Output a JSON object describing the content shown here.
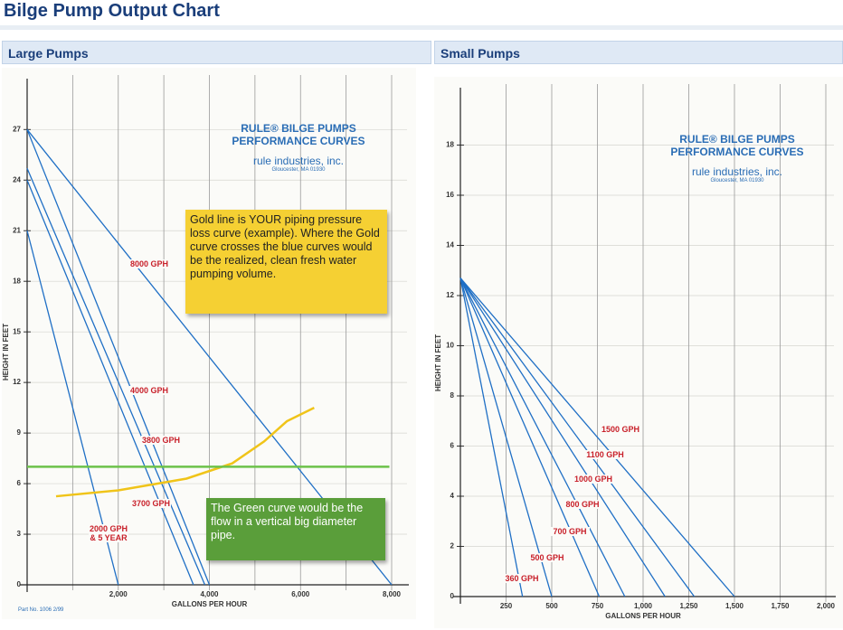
{
  "header": {
    "title": "Bilge Pump Output Chart"
  },
  "chart_data": [
    {
      "type": "line",
      "title": "Large Pumps",
      "x_label": "GALLONS PER HOUR",
      "y_label": "HEIGHT IN FEET",
      "logo": [
        "RULE® BILGE PUMPS",
        "PERFORMANCE CURVES",
        "rule industries, inc.",
        "Gloucester, MA 01930"
      ],
      "footnote": "Part No. 1006  2/99",
      "xlim": [
        0,
        8000
      ],
      "ylim": [
        0,
        29
      ],
      "xticks": [
        {
          "value": 2000,
          "label": "2,000"
        },
        {
          "value": 4000,
          "label": "4,000"
        },
        {
          "value": 6000,
          "label": "6,000"
        },
        {
          "value": 8000,
          "label": "8,000"
        }
      ],
      "x_minor_ticks": [
        1000,
        3000,
        5000,
        7000
      ],
      "yticks": [
        0,
        3,
        6,
        9,
        12,
        15,
        18,
        21,
        24,
        27
      ],
      "series": [
        {
          "name": "8000 GPH",
          "color": "#1f6fc5",
          "x": [
            0,
            8000
          ],
          "values": [
            27,
            0
          ]
        },
        {
          "name": "4000 GPH",
          "color": "#1f6fc5",
          "x": [
            0,
            4000
          ],
          "values": [
            27,
            0
          ]
        },
        {
          "name": "3800 GPH",
          "color": "#1f6fc5",
          "x": [
            0,
            3900
          ],
          "values": [
            24.7,
            0
          ]
        },
        {
          "name": "3700 GPH",
          "color": "#1f6fc5",
          "x": [
            0,
            3650
          ],
          "values": [
            24,
            0
          ]
        },
        {
          "name": "2000 GPH & 5 YEAR",
          "color": "#1f6fc5",
          "x": [
            0,
            2000
          ],
          "values": [
            21,
            0
          ]
        },
        {
          "color": "#f0c419",
          "x": [
            635,
            2000,
            3500,
            4500,
            5200,
            5700,
            6300
          ],
          "values": [
            5.25,
            5.6,
            6.3,
            7.2,
            8.5,
            9.7,
            10.5
          ]
        },
        {
          "color": "#6cc24a",
          "x": [
            0,
            7950
          ],
          "values": [
            7,
            7
          ]
        }
      ],
      "annotations": [
        {
          "text": "Gold line is YOUR piping pressure loss curve (example). Where the Gold curve crosses the blue curves would be the realized, clean fresh water pumping volume.",
          "color": "#f5d033"
        },
        {
          "text": "The Green curve would be the flow in a vertical big diameter pipe.",
          "color": "#5a9e3a"
        }
      ]
    },
    {
      "type": "line",
      "title": "Small Pumps",
      "x_label": "GALLONS PER HOUR",
      "y_label": "HEIGHT IN FEET",
      "logo": [
        "RULE® BILGE PUMPS",
        "PERFORMANCE CURVES",
        "rule industries, inc.",
        "Gloucester, MA 01930"
      ],
      "xlim": [
        0,
        2000
      ],
      "ylim": [
        0,
        20
      ],
      "xticks": [
        250,
        500,
        750,
        {
          "value": 1000,
          "label": "1,000"
        },
        {
          "value": 1250,
          "label": "1,250"
        },
        {
          "value": 1500,
          "label": "1,500"
        },
        {
          "value": 1750,
          "label": "1,750"
        },
        {
          "value": 2000,
          "label": "2,000"
        }
      ],
      "yticks": [
        0,
        2,
        4,
        6,
        8,
        10,
        12,
        14,
        16,
        18
      ],
      "series": [
        {
          "name": "1500 GPH",
          "color": "#1f6fc5",
          "x": [
            0,
            1500
          ],
          "values": [
            12.7,
            0
          ]
        },
        {
          "name": "1100 GPH",
          "color": "#1f6fc5",
          "x": [
            0,
            1280
          ],
          "values": [
            12.7,
            0
          ]
        },
        {
          "name": "1000 GPH",
          "color": "#1f6fc5",
          "x": [
            0,
            1120
          ],
          "values": [
            12.7,
            0
          ]
        },
        {
          "name": "800 GPH",
          "color": "#1f6fc5",
          "x": [
            0,
            900
          ],
          "values": [
            12.7,
            0
          ]
        },
        {
          "name": "700 GPH",
          "color": "#1f6fc5",
          "x": [
            0,
            760
          ],
          "values": [
            12.7,
            0
          ]
        },
        {
          "name": "500 GPH",
          "color": "#1f6fc5",
          "x": [
            0,
            500
          ],
          "values": [
            12.7,
            0
          ]
        },
        {
          "name": "360 GPH",
          "color": "#1f6fc5",
          "x": [
            0,
            340
          ],
          "values": [
            12.7,
            0
          ]
        }
      ]
    }
  ]
}
